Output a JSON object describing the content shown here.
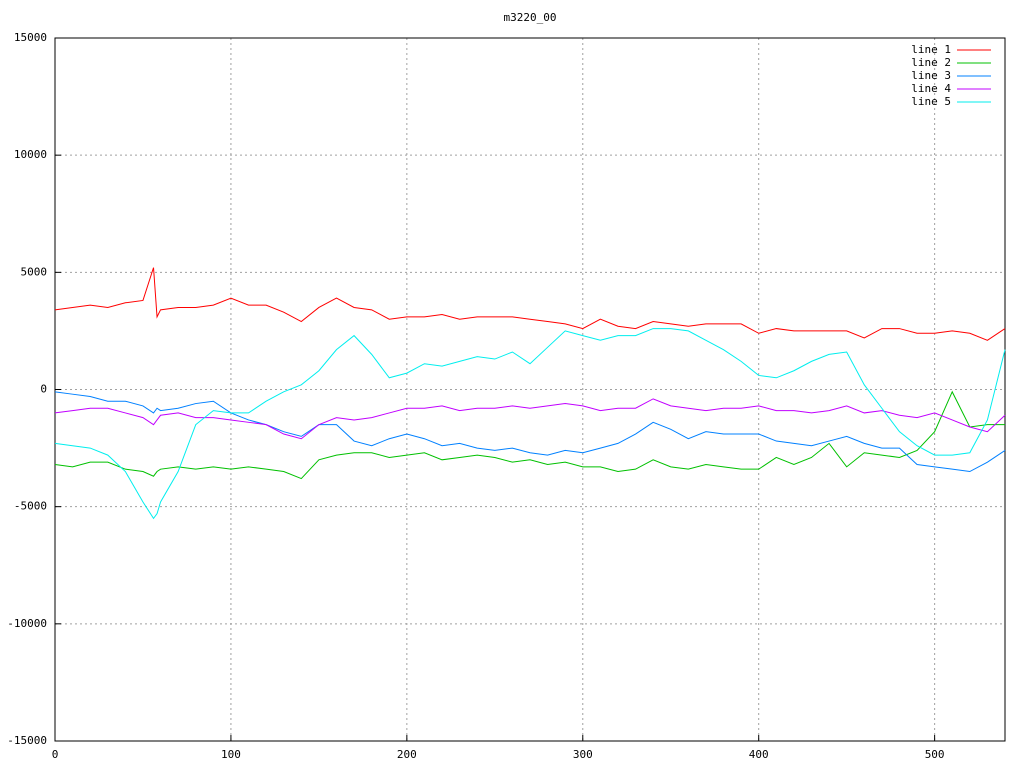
{
  "chart_data": {
    "type": "line",
    "title": "m3220_00",
    "x": [
      0,
      10,
      20,
      30,
      40,
      50,
      56,
      58,
      60,
      70,
      80,
      90,
      100,
      110,
      120,
      130,
      140,
      150,
      160,
      170,
      180,
      190,
      200,
      210,
      220,
      230,
      240,
      250,
      260,
      270,
      280,
      290,
      300,
      310,
      320,
      330,
      340,
      350,
      360,
      370,
      380,
      390,
      400,
      410,
      420,
      430,
      440,
      450,
      460,
      470,
      480,
      490,
      500,
      510,
      520,
      530,
      540
    ],
    "series": [
      {
        "name": "line 1",
        "color": "#ff0000",
        "values": [
          3400,
          3500,
          3600,
          3500,
          3700,
          3800,
          5200,
          3100,
          3400,
          3500,
          3500,
          3600,
          3900,
          3600,
          3600,
          3300,
          2900,
          3500,
          3900,
          3500,
          3400,
          3000,
          3100,
          3100,
          3200,
          3000,
          3100,
          3100,
          3100,
          3000,
          2900,
          2800,
          2600,
          3000,
          2700,
          2600,
          2900,
          2800,
          2700,
          2800,
          2800,
          2800,
          2400,
          2600,
          2500,
          2500,
          2500,
          2500,
          2200,
          2600,
          2600,
          2400,
          2400,
          2500,
          2400,
          2100,
          2600
        ]
      },
      {
        "name": "line 2",
        "color": "#00c000",
        "values": [
          -3200,
          -3300,
          -3100,
          -3100,
          -3400,
          -3500,
          -3700,
          -3500,
          -3400,
          -3300,
          -3400,
          -3300,
          -3400,
          -3300,
          -3400,
          -3500,
          -3800,
          -3000,
          -2800,
          -2700,
          -2700,
          -2900,
          -2800,
          -2700,
          -3000,
          -2900,
          -2800,
          -2900,
          -3100,
          -3000,
          -3200,
          -3100,
          -3300,
          -3300,
          -3500,
          -3400,
          -3000,
          -3300,
          -3400,
          -3200,
          -3300,
          -3400,
          -3400,
          -2900,
          -3200,
          -2900,
          -2300,
          -3300,
          -2700,
          -2800,
          -2900,
          -2600,
          -1800,
          -100,
          -1600,
          -1500,
          -1500
        ]
      },
      {
        "name": "line 3",
        "color": "#0080ff",
        "values": [
          -100,
          -200,
          -300,
          -500,
          -500,
          -700,
          -1000,
          -800,
          -900,
          -800,
          -600,
          -500,
          -1000,
          -1300,
          -1500,
          -1800,
          -2000,
          -1500,
          -1500,
          -2200,
          -2400,
          -2100,
          -1900,
          -2100,
          -2400,
          -2300,
          -2500,
          -2600,
          -2500,
          -2700,
          -2800,
          -2600,
          -2700,
          -2500,
          -2300,
          -1900,
          -1400,
          -1700,
          -2100,
          -1800,
          -1900,
          -1900,
          -1900,
          -2200,
          -2300,
          -2400,
          -2200,
          -2000,
          -2300,
          -2500,
          -2500,
          -3200,
          -3300,
          -3400,
          -3500,
          -3100,
          -2600
        ]
      },
      {
        "name": "line 4",
        "color": "#c000ff",
        "values": [
          -1000,
          -900,
          -800,
          -800,
          -1000,
          -1200,
          -1500,
          -1300,
          -1100,
          -1000,
          -1200,
          -1200,
          -1300,
          -1400,
          -1500,
          -1900,
          -2100,
          -1500,
          -1200,
          -1300,
          -1200,
          -1000,
          -800,
          -800,
          -700,
          -900,
          -800,
          -800,
          -700,
          -800,
          -700,
          -600,
          -700,
          -900,
          -800,
          -800,
          -400,
          -700,
          -800,
          -900,
          -800,
          -800,
          -700,
          -900,
          -900,
          -1000,
          -900,
          -700,
          -1000,
          -900,
          -1100,
          -1200,
          -1000,
          -1300,
          -1600,
          -1800,
          -1100
        ]
      },
      {
        "name": "line 5",
        "color": "#00eeee",
        "values": [
          -2300,
          -2400,
          -2500,
          -2800,
          -3500,
          -4800,
          -5500,
          -5300,
          -4800,
          -3500,
          -1500,
          -900,
          -1000,
          -1000,
          -500,
          -100,
          200,
          800,
          1700,
          2300,
          1500,
          500,
          700,
          1100,
          1000,
          1200,
          1400,
          1300,
          1600,
          1100,
          1800,
          2500,
          2300,
          2100,
          2300,
          2300,
          2600,
          2600,
          2500,
          2100,
          1700,
          1200,
          600,
          500,
          800,
          1200,
          1500,
          1600,
          200,
          -800,
          -1800,
          -2400,
          -2800,
          -2800,
          -2700,
          -1300,
          1700
        ]
      }
    ],
    "xlim": [
      0,
      540
    ],
    "xticks": [
      0,
      100,
      200,
      300,
      400,
      500
    ],
    "ylim": [
      -15000,
      15000
    ],
    "yticks": [
      -15000,
      -10000,
      -5000,
      0,
      5000,
      10000,
      15000
    ],
    "grid": true,
    "legend": "top-right"
  }
}
